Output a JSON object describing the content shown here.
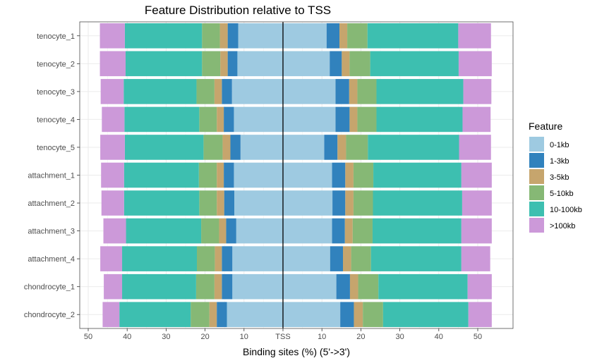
{
  "chart_data": {
    "type": "bar",
    "orientation": "horizontal",
    "stacked": true,
    "diverging": true,
    "title": "Feature Distribution relative to TSS",
    "xlabel": "Binding sites (%) (5'->3')",
    "ylabel": "",
    "xlim": [
      -50,
      50
    ],
    "grid": true,
    "legend_position": "right",
    "center_label": "TSS",
    "x_tick_labels": [
      "50",
      "40",
      "30",
      "20",
      "10",
      "TSS",
      "10",
      "20",
      "30",
      "40",
      "50"
    ],
    "x_tick_values": [
      -50,
      -40,
      -30,
      -20,
      -10,
      0,
      10,
      20,
      30,
      40,
      50
    ],
    "categories": [
      "tenocyte_1",
      "tenocyte_2",
      "tenocyte_3",
      "tenocyte_4",
      "tenocyte_5",
      "attachment_1",
      "attachment_2",
      "attachment_3",
      "attachment_4",
      "chondrocyte_1",
      "chondrocyte_2"
    ],
    "legend": {
      "title": "Feature"
    },
    "series": [
      {
        "name": "0-1kb",
        "color": "#9ECAE1",
        "upstream": [
          11.5,
          11.7,
          13.1,
          12.6,
          10.9,
          12.6,
          12.5,
          12.0,
          13.0,
          13.0,
          14.4
        ],
        "downstream": [
          11.2,
          12.0,
          13.5,
          13.5,
          10.6,
          12.6,
          12.7,
          12.6,
          12.1,
          13.7,
          14.7
        ]
      },
      {
        "name": "1-3kb",
        "color": "#3182BD",
        "upstream": [
          2.7,
          2.5,
          2.6,
          2.6,
          2.6,
          2.6,
          2.6,
          2.6,
          2.7,
          2.7,
          2.6
        ],
        "downstream": [
          3.3,
          3.1,
          3.5,
          3.6,
          3.4,
          3.4,
          3.3,
          3.3,
          3.3,
          3.5,
          3.5
        ]
      },
      {
        "name": "3-5kb",
        "color": "#C6A56D",
        "upstream": [
          2.0,
          1.9,
          1.9,
          1.8,
          2.0,
          1.8,
          1.9,
          1.8,
          1.8,
          1.9,
          1.9
        ],
        "downstream": [
          2.0,
          2.0,
          2.1,
          2.0,
          2.2,
          2.1,
          2.1,
          2.0,
          2.1,
          2.1,
          2.3
        ]
      },
      {
        "name": "5-10kb",
        "color": "#86B875",
        "upstream": [
          4.6,
          4.7,
          4.6,
          4.5,
          4.9,
          4.6,
          4.5,
          4.6,
          4.6,
          4.7,
          4.8
        ],
        "downstream": [
          5.2,
          5.3,
          4.9,
          4.9,
          5.6,
          5.1,
          5.0,
          5.1,
          5.1,
          5.2,
          5.2
        ]
      },
      {
        "name": "10-100kb",
        "color": "#3DBFB0",
        "upstream": [
          19.8,
          19.6,
          18.7,
          19.2,
          20.2,
          19.2,
          19.3,
          19.3,
          19.2,
          19.0,
          18.3
        ],
        "downstream": [
          23.3,
          22.7,
          22.3,
          22.1,
          23.4,
          22.6,
          22.9,
          22.8,
          23.2,
          22.9,
          21.9
        ]
      },
      {
        "name": ">100kb",
        "color": "#CC99D9",
        "upstream": [
          6.4,
          6.6,
          5.9,
          5.8,
          6.3,
          5.9,
          5.8,
          5.8,
          5.6,
          4.7,
          4.3
        ],
        "downstream": [
          8.4,
          8.5,
          7.2,
          7.2,
          8.2,
          7.8,
          7.6,
          7.8,
          7.4,
          6.2,
          6.0
        ]
      }
    ]
  }
}
